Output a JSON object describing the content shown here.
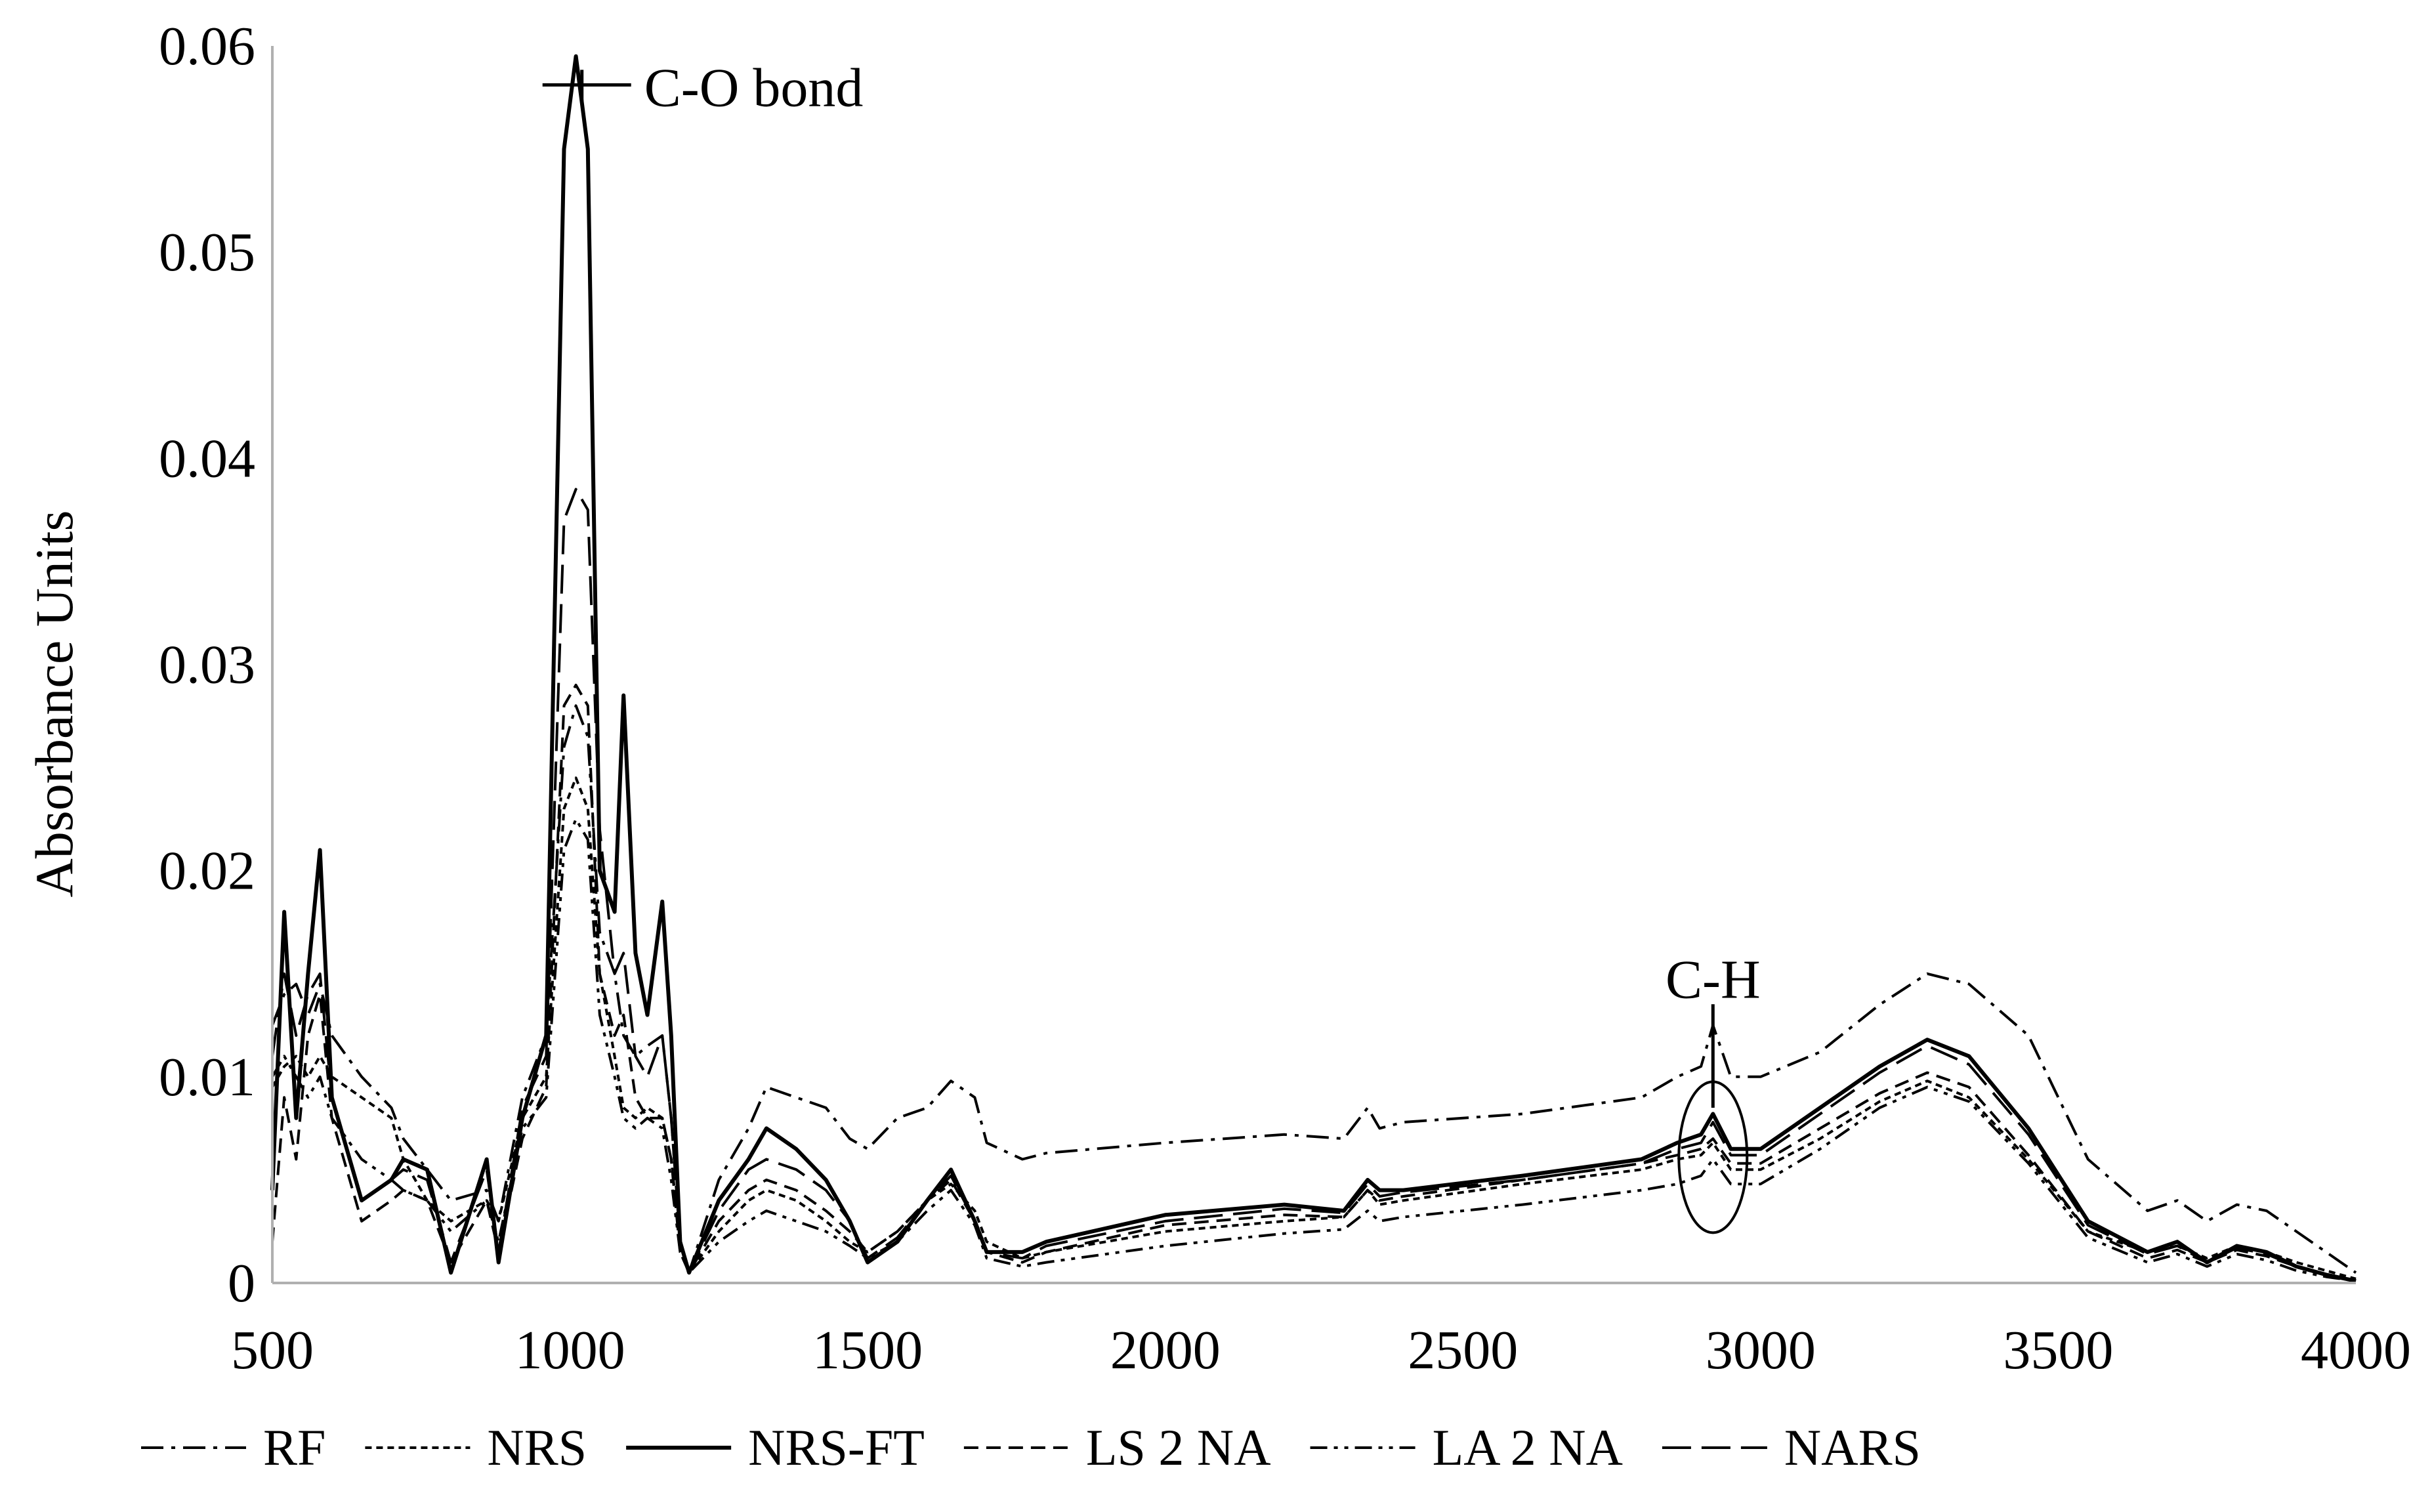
{
  "chart_data": {
    "type": "line",
    "title": "",
    "xlabel": "",
    "ylabel": "Absorbance Units",
    "xlim": [
      500,
      4000
    ],
    "ylim": [
      0,
      0.06
    ],
    "x_ticks": [
      "500",
      "1000",
      "1500",
      "2000",
      "2500",
      "3000",
      "3500",
      "4000"
    ],
    "y_ticks": [
      "0",
      "0.01",
      "0.02",
      "0.03",
      "0.04",
      "0.05",
      "0.06"
    ],
    "grid": false,
    "legend_position": "bottom",
    "annotations": [
      {
        "text": "C-O  bond",
        "x": 1020,
        "y": 0.059
      },
      {
        "text": "C-H",
        "x": 2920,
        "y": 0.0132
      }
    ],
    "series": [
      {
        "name": "RF",
        "dash": "dash-dot",
        "x": [
          500,
          520,
          540,
          560,
          580,
          600,
          650,
          700,
          720,
          760,
          800,
          860,
          880,
          920,
          960,
          990,
          1010,
          1030,
          1050,
          1075,
          1090,
          1110,
          1130,
          1155,
          1170,
          1185,
          1200,
          1250,
          1300,
          1330,
          1380,
          1430,
          1470,
          1500,
          1550,
          1600,
          1640,
          1680,
          1700,
          1760,
          1800,
          2000,
          2200,
          2300,
          2340,
          2360,
          2400,
          2600,
          2800,
          2860,
          2900,
          2920,
          2950,
          3000,
          3100,
          3200,
          3280,
          3350,
          3450,
          3550,
          3650,
          3700,
          3750,
          3800,
          3850,
          3900,
          3950,
          4000
        ],
        "y": [
          0.0125,
          0.014,
          0.0145,
          0.013,
          0.0145,
          0.012,
          0.01,
          0.0085,
          0.007,
          0.0055,
          0.004,
          0.0045,
          0.003,
          0.009,
          0.012,
          0.026,
          0.028,
          0.0265,
          0.017,
          0.015,
          0.012,
          0.011,
          0.0115,
          0.012,
          0.008,
          0.002,
          0.0005,
          0.005,
          0.0075,
          0.0095,
          0.009,
          0.0085,
          0.007,
          0.0065,
          0.008,
          0.0085,
          0.0098,
          0.009,
          0.0068,
          0.006,
          0.0063,
          0.0068,
          0.0072,
          0.007,
          0.0085,
          0.0075,
          0.0078,
          0.0082,
          0.009,
          0.01,
          0.0105,
          0.0125,
          0.01,
          0.01,
          0.0112,
          0.0135,
          0.015,
          0.0145,
          0.012,
          0.006,
          0.0035,
          0.004,
          0.003,
          0.0038,
          0.0035,
          0.0025,
          0.0015,
          0.0005
        ]
      },
      {
        "name": "NRS",
        "dash": "short-dash",
        "x": [
          500,
          520,
          540,
          560,
          580,
          600,
          650,
          700,
          720,
          760,
          800,
          860,
          880,
          920,
          960,
          990,
          1010,
          1030,
          1050,
          1075,
          1090,
          1110,
          1130,
          1155,
          1170,
          1185,
          1200,
          1250,
          1300,
          1330,
          1380,
          1430,
          1470,
          1500,
          1550,
          1600,
          1640,
          1680,
          1700,
          1760,
          1800,
          2000,
          2200,
          2300,
          2340,
          2360,
          2400,
          2600,
          2800,
          2860,
          2900,
          2920,
          2950,
          3000,
          3100,
          3200,
          3280,
          3350,
          3450,
          3550,
          3650,
          3700,
          3750,
          3800,
          3850,
          3900,
          3950,
          4000
        ],
        "y": [
          0.0095,
          0.0105,
          0.011,
          0.01,
          0.011,
          0.01,
          0.009,
          0.008,
          0.006,
          0.004,
          0.003,
          0.004,
          0.003,
          0.008,
          0.01,
          0.023,
          0.0245,
          0.023,
          0.015,
          0.011,
          0.0085,
          0.008,
          0.0085,
          0.008,
          0.006,
          0.002,
          0.0005,
          0.0025,
          0.004,
          0.0045,
          0.004,
          0.003,
          0.002,
          0.0015,
          0.0025,
          0.004,
          0.0048,
          0.0035,
          0.002,
          0.0012,
          0.0015,
          0.0025,
          0.003,
          0.0032,
          0.0045,
          0.0038,
          0.004,
          0.0048,
          0.0055,
          0.006,
          0.0062,
          0.0068,
          0.0055,
          0.0055,
          0.007,
          0.0088,
          0.0098,
          0.009,
          0.006,
          0.0025,
          0.0015,
          0.0018,
          0.0012,
          0.0018,
          0.0015,
          0.001,
          0.0006,
          0.0002
        ]
      },
      {
        "name": "NRS-FT",
        "dash": "solid",
        "x": [
          500,
          520,
          540,
          560,
          580,
          600,
          650,
          700,
          720,
          760,
          800,
          860,
          880,
          920,
          960,
          990,
          1010,
          1030,
          1050,
          1075,
          1090,
          1110,
          1130,
          1155,
          1170,
          1185,
          1200,
          1250,
          1300,
          1330,
          1380,
          1430,
          1470,
          1500,
          1550,
          1600,
          1640,
          1680,
          1700,
          1760,
          1800,
          2000,
          2200,
          2300,
          2340,
          2360,
          2400,
          2600,
          2800,
          2860,
          2900,
          2920,
          2950,
          3000,
          3100,
          3200,
          3280,
          3350,
          3450,
          3550,
          3650,
          3700,
          3750,
          3800,
          3850,
          3900,
          3950,
          4000
        ],
        "y": [
          0.0045,
          0.018,
          0.008,
          0.015,
          0.021,
          0.009,
          0.004,
          0.005,
          0.006,
          0.0055,
          0.0005,
          0.006,
          0.001,
          0.008,
          0.012,
          0.055,
          0.0595,
          0.055,
          0.02,
          0.018,
          0.0285,
          0.016,
          0.013,
          0.0185,
          0.012,
          0.002,
          0.0005,
          0.004,
          0.006,
          0.0075,
          0.0065,
          0.005,
          0.003,
          0.001,
          0.002,
          0.004,
          0.0055,
          0.003,
          0.0015,
          0.0015,
          0.002,
          0.0033,
          0.0038,
          0.0035,
          0.005,
          0.0045,
          0.0045,
          0.0052,
          0.006,
          0.0068,
          0.0072,
          0.0082,
          0.0065,
          0.0065,
          0.0085,
          0.0105,
          0.0118,
          0.011,
          0.0075,
          0.003,
          0.0015,
          0.002,
          0.001,
          0.0018,
          0.0015,
          0.0008,
          0.0004,
          0.0001
        ]
      },
      {
        "name": "LS 2 NA",
        "dash": "medium-dash",
        "x": [
          500,
          520,
          540,
          560,
          580,
          600,
          650,
          700,
          720,
          760,
          800,
          860,
          880,
          920,
          960,
          990,
          1010,
          1030,
          1050,
          1075,
          1090,
          1110,
          1130,
          1155,
          1170,
          1185,
          1200,
          1250,
          1300,
          1330,
          1380,
          1430,
          1470,
          1500,
          1550,
          1600,
          1640,
          1680,
          1700,
          1760,
          1800,
          2000,
          2200,
          2300,
          2340,
          2360,
          2400,
          2600,
          2800,
          2860,
          2900,
          2920,
          2950,
          3000,
          3100,
          3200,
          3280,
          3350,
          3450,
          3550,
          3650,
          3700,
          3750,
          3800,
          3850,
          3900,
          3950,
          4000
        ],
        "y": [
          0.002,
          0.009,
          0.006,
          0.012,
          0.014,
          0.008,
          0.003,
          0.004,
          0.0045,
          0.004,
          0.001,
          0.004,
          0.0015,
          0.007,
          0.0095,
          0.028,
          0.029,
          0.028,
          0.015,
          0.012,
          0.013,
          0.009,
          0.008,
          0.008,
          0.006,
          0.0015,
          0.0005,
          0.003,
          0.0045,
          0.005,
          0.0045,
          0.0035,
          0.0025,
          0.0015,
          0.0025,
          0.004,
          0.005,
          0.003,
          0.0015,
          0.001,
          0.0015,
          0.0028,
          0.0033,
          0.0032,
          0.0045,
          0.004,
          0.0042,
          0.005,
          0.0058,
          0.0062,
          0.0065,
          0.007,
          0.0058,
          0.0058,
          0.0075,
          0.0092,
          0.0102,
          0.0095,
          0.0062,
          0.0025,
          0.0012,
          0.0016,
          0.001,
          0.0016,
          0.0013,
          0.0008,
          0.0004,
          0.0001
        ]
      },
      {
        "name": "LA 2 NA",
        "dash": "dash-dot-dot",
        "x": [
          500,
          520,
          540,
          560,
          580,
          600,
          650,
          700,
          720,
          760,
          800,
          860,
          880,
          920,
          960,
          990,
          1010,
          1030,
          1050,
          1075,
          1090,
          1110,
          1130,
          1155,
          1170,
          1185,
          1200,
          1250,
          1300,
          1330,
          1380,
          1430,
          1470,
          1500,
          1550,
          1600,
          1640,
          1680,
          1700,
          1760,
          1800,
          2000,
          2200,
          2300,
          2340,
          2360,
          2400,
          2600,
          2800,
          2860,
          2900,
          2920,
          2950,
          3000,
          3100,
          3200,
          3280,
          3350,
          3450,
          3550,
          3650,
          3700,
          3750,
          3800,
          3850,
          3900,
          3950,
          4000
        ],
        "y": [
          0.01,
          0.011,
          0.01,
          0.009,
          0.01,
          0.008,
          0.006,
          0.005,
          0.0045,
          0.004,
          0.0025,
          0.004,
          0.002,
          0.0075,
          0.009,
          0.021,
          0.0225,
          0.0215,
          0.013,
          0.01,
          0.008,
          0.0075,
          0.008,
          0.0075,
          0.005,
          0.0015,
          0.0005,
          0.002,
          0.003,
          0.0035,
          0.003,
          0.0025,
          0.0018,
          0.0012,
          0.002,
          0.0035,
          0.0045,
          0.0028,
          0.0012,
          0.0008,
          0.001,
          0.0018,
          0.0024,
          0.0026,
          0.0035,
          0.003,
          0.0032,
          0.0038,
          0.0045,
          0.0048,
          0.0052,
          0.006,
          0.0048,
          0.0048,
          0.0065,
          0.0085,
          0.0095,
          0.0088,
          0.0058,
          0.0022,
          0.001,
          0.0014,
          0.0008,
          0.0014,
          0.0011,
          0.0006,
          0.0003,
          0.0001
        ]
      },
      {
        "name": "NARS",
        "dash": "long-dash",
        "x": [
          500,
          520,
          540,
          560,
          580,
          600,
          650,
          700,
          720,
          760,
          800,
          860,
          880,
          920,
          960,
          990,
          1010,
          1030,
          1050,
          1075,
          1090,
          1110,
          1130,
          1155,
          1170,
          1185,
          1200,
          1250,
          1300,
          1330,
          1380,
          1430,
          1470,
          1500,
          1550,
          1600,
          1640,
          1680,
          1700,
          1760,
          1800,
          2000,
          2200,
          2300,
          2340,
          2360,
          2400,
          2600,
          2800,
          2860,
          2900,
          2920,
          2950,
          3000,
          3100,
          3200,
          3280,
          3350,
          3450,
          3550,
          3650,
          3700,
          3750,
          3800,
          3850,
          3900,
          3950,
          4000
        ],
        "y": [
          0.011,
          0.015,
          0.012,
          0.014,
          0.015,
          0.009,
          0.004,
          0.005,
          0.0055,
          0.005,
          0.001,
          0.0055,
          0.0015,
          0.0085,
          0.011,
          0.037,
          0.0385,
          0.0375,
          0.022,
          0.015,
          0.016,
          0.011,
          0.01,
          0.012,
          0.008,
          0.002,
          0.0005,
          0.0035,
          0.0055,
          0.006,
          0.0055,
          0.0045,
          0.003,
          0.0012,
          0.0022,
          0.004,
          0.0052,
          0.003,
          0.0015,
          0.0012,
          0.0018,
          0.003,
          0.0036,
          0.0034,
          0.0048,
          0.0042,
          0.0044,
          0.005,
          0.0058,
          0.0065,
          0.0068,
          0.0078,
          0.0062,
          0.0062,
          0.0082,
          0.0102,
          0.0115,
          0.0106,
          0.0072,
          0.0028,
          0.0014,
          0.0018,
          0.001,
          0.0017,
          0.0014,
          0.0008,
          0.0004,
          0.0001
        ]
      }
    ]
  }
}
